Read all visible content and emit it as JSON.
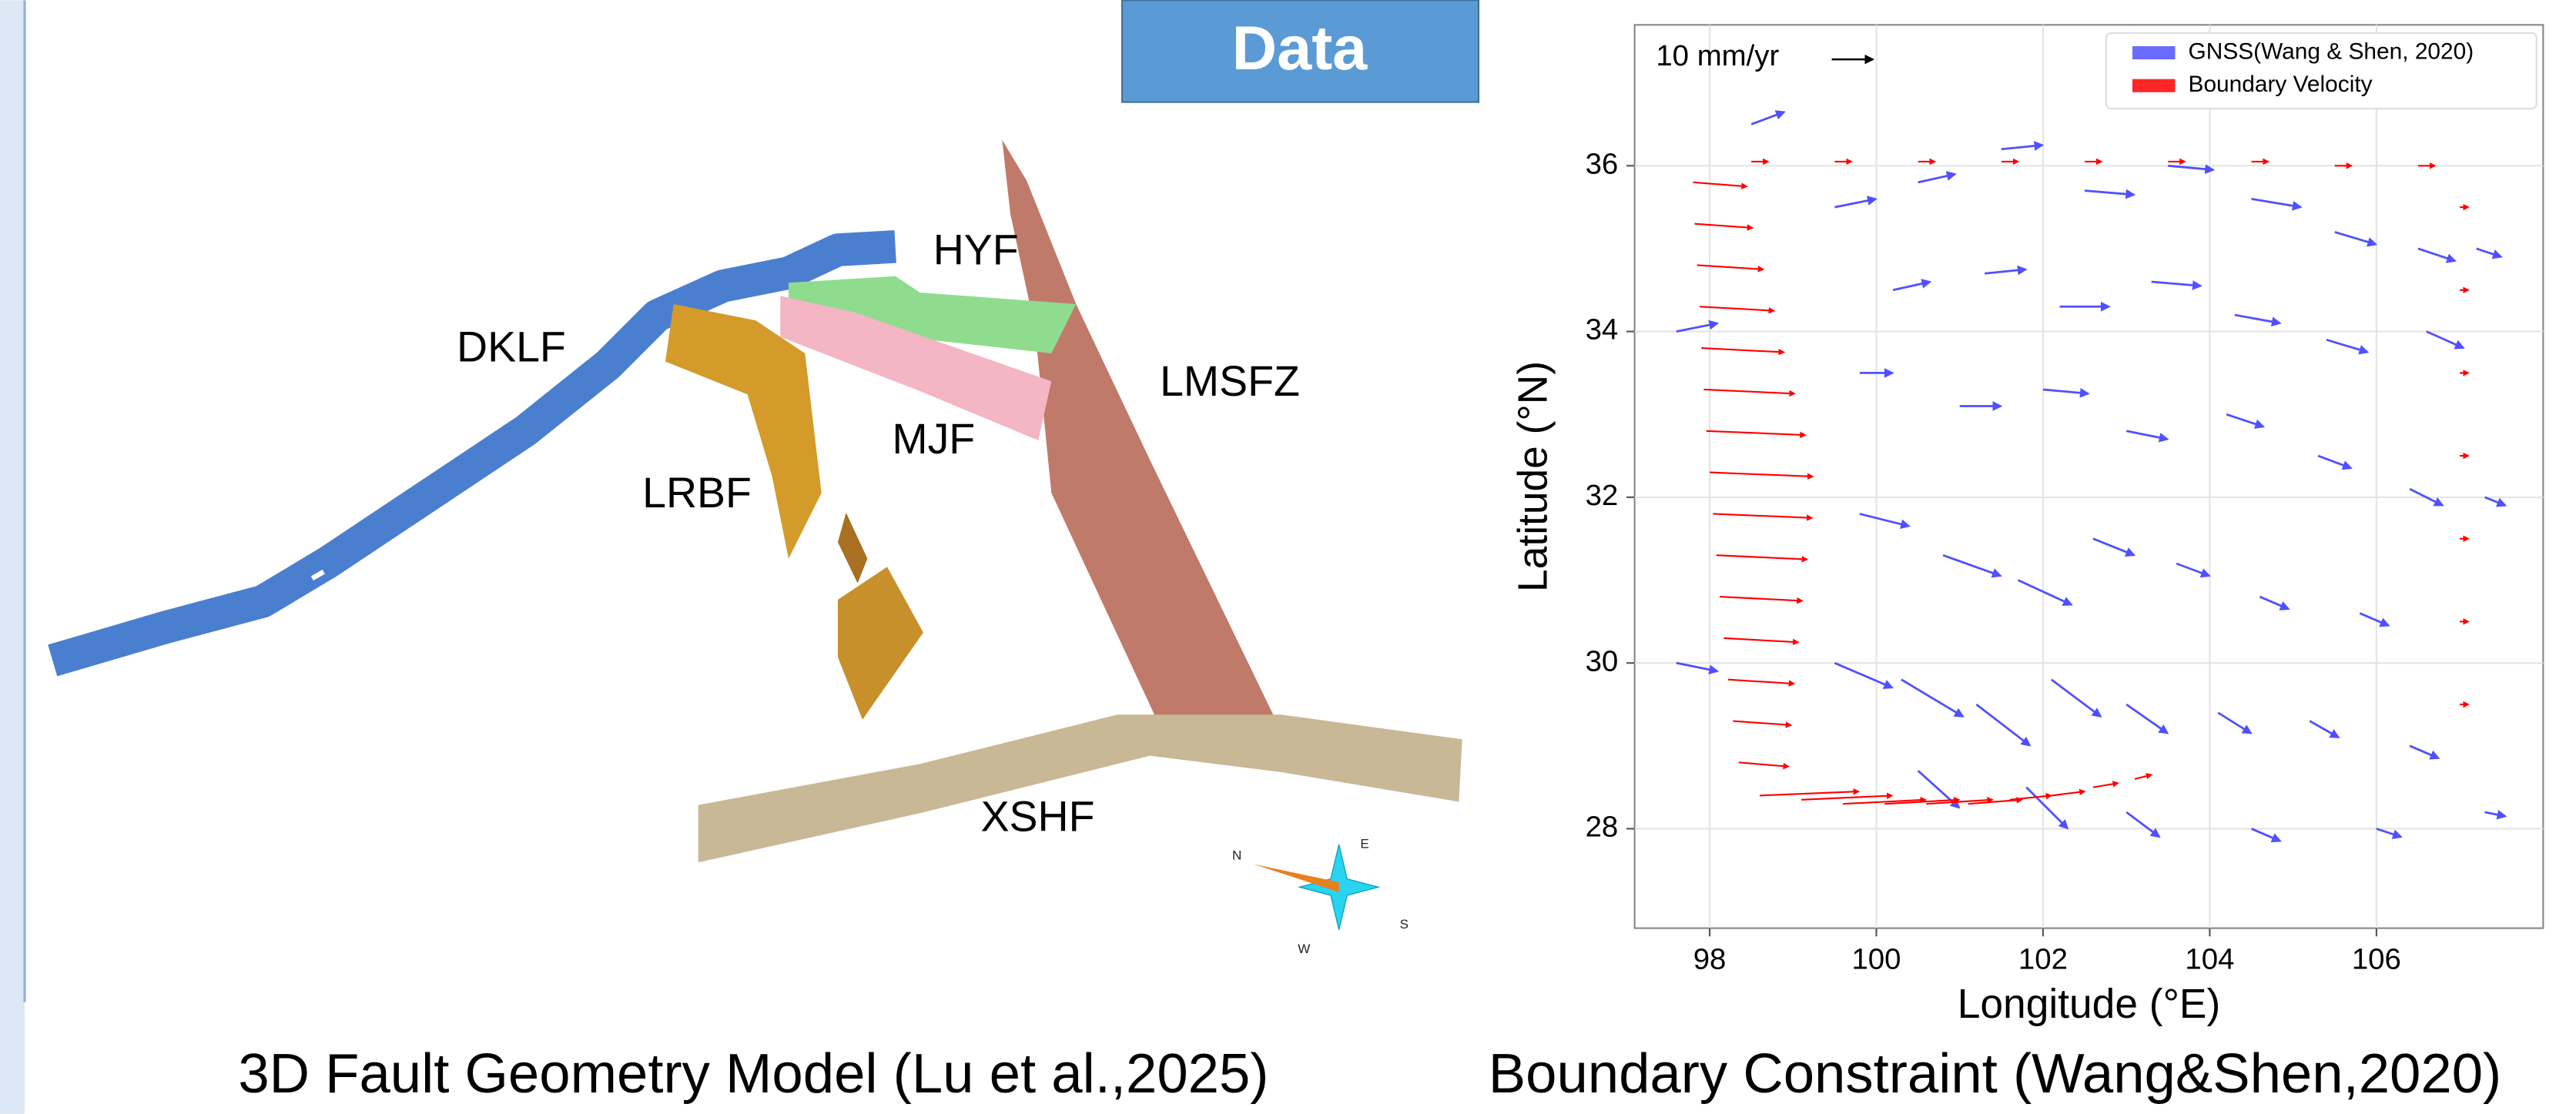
{
  "header": {
    "title": "Data"
  },
  "left_panel": {
    "labels": [
      "DKLF",
      "HYF",
      "LMSFZ",
      "MJF",
      "LRBF",
      "XSHF"
    ],
    "compass": [
      "N",
      "E",
      "S",
      "W"
    ],
    "caption": "3D Fault Geometry Model (Lu et al.,2025)"
  },
  "chart_data": {
    "type": "quiver",
    "caption": "Boundary Constraint (Wang&Shen,2020)",
    "xlabel": "Longitude  (°E)",
    "ylabel": "Latitude  (°N)",
    "xlim": [
      97.1,
      108
    ],
    "ylim": [
      26.8,
      37.7
    ],
    "xticks": [
      98,
      100,
      102,
      104,
      106
    ],
    "yticks": [
      28,
      30,
      32,
      34,
      36
    ],
    "grid": true,
    "legend": "upper right",
    "key": {
      "label": "10 mm/yr",
      "value": 10
    },
    "series": [
      {
        "name": "GNSS(Wang & Shen, 2020)",
        "color": "#5050ff",
        "x": [
          98.5,
          99.5,
          100.5,
          101.5,
          102.5,
          103.5,
          104.5,
          105.5,
          106.5,
          100.2,
          101.3,
          102.2,
          103.3,
          104.3,
          105.4,
          106.6,
          99.8,
          101.0,
          102.0,
          103.0,
          104.2,
          105.3,
          106.4,
          99.8,
          100.8,
          101.7,
          102.6,
          103.6,
          104.6,
          105.8,
          99.5,
          100.3,
          101.2,
          102.1,
          103.0,
          104.1,
          105.2,
          106.4,
          100.5,
          101.8,
          103.0,
          104.5,
          106.0,
          97.6,
          97.6,
          107.2,
          107.3,
          107.3
        ],
        "y": [
          36.5,
          35.5,
          35.8,
          36.2,
          35.7,
          36.0,
          35.6,
          35.2,
          35.0,
          34.5,
          34.7,
          34.3,
          34.6,
          34.2,
          33.9,
          34.0,
          33.5,
          33.1,
          33.3,
          32.8,
          33.0,
          32.5,
          32.1,
          31.8,
          31.3,
          31.0,
          31.5,
          31.2,
          30.8,
          30.6,
          30.0,
          29.8,
          29.5,
          29.8,
          29.5,
          29.4,
          29.3,
          29.0,
          28.7,
          28.5,
          28.2,
          28.0,
          28.0,
          34.0,
          30.0,
          35.0,
          32.0,
          28.2
        ],
        "u": [
          8,
          10,
          9,
          10,
          12,
          11,
          12,
          10,
          9,
          9,
          10,
          12,
          12,
          11,
          10,
          9,
          8,
          10,
          11,
          10,
          9,
          8,
          8,
          12,
          14,
          13,
          10,
          8,
          7,
          7,
          14,
          15,
          13,
          12,
          10,
          8,
          7,
          7,
          10,
          10,
          8,
          7,
          6,
          10,
          10,
          6,
          5,
          5
        ],
        "v": [
          3,
          2,
          2,
          1,
          -1,
          -1,
          -2,
          -3,
          -3,
          2,
          1,
          0,
          -1,
          -2,
          -3,
          -4,
          0,
          0,
          -1,
          -2,
          -3,
          -3,
          -4,
          -3,
          -5,
          -6,
          -4,
          -3,
          -3,
          -3,
          -6,
          -9,
          -10,
          -9,
          -7,
          -5,
          -4,
          -3,
          -9,
          -10,
          -6,
          -3,
          -2,
          2,
          -2,
          -2,
          -2,
          -1
        ]
      },
      {
        "name": "Boundary Velocity",
        "color": "#ff0000",
        "x": [
          97.8,
          97.82,
          97.85,
          97.88,
          97.9,
          97.93,
          97.96,
          98.0,
          98.04,
          98.08,
          98.12,
          98.17,
          98.22,
          98.28,
          98.35,
          98.6,
          99.1,
          99.6,
          100.1,
          100.6,
          101.1,
          101.6,
          102.1,
          102.6,
          103.1,
          98.5,
          99.5,
          100.5,
          101.5,
          102.5,
          103.5,
          104.5,
          105.5,
          106.5,
          107.0,
          107.0,
          107.0,
          107.0,
          107.0,
          107.0,
          107.0
        ],
        "y": [
          35.8,
          35.3,
          34.8,
          34.3,
          33.8,
          33.3,
          32.8,
          32.3,
          31.8,
          31.3,
          30.8,
          30.3,
          29.8,
          29.3,
          28.8,
          28.4,
          28.35,
          28.3,
          28.3,
          28.3,
          28.3,
          28.35,
          28.4,
          28.5,
          28.6,
          36.05,
          36.05,
          36.05,
          36.05,
          36.05,
          36.05,
          36.05,
          36.0,
          36.0,
          35.5,
          34.5,
          33.5,
          32.5,
          31.5,
          30.5,
          29.5
        ],
        "u": [
          13,
          14,
          16,
          18,
          20,
          22,
          24,
          25,
          24,
          22,
          20,
          18,
          16,
          14,
          12,
          24,
          22,
          20,
          18,
          16,
          13,
          10,
          8,
          6,
          4,
          4,
          4,
          4,
          4,
          4,
          4,
          4,
          4,
          4,
          2,
          2,
          2,
          2,
          2,
          2,
          2
        ],
        "v": [
          -1,
          -1,
          -1,
          -1,
          -1,
          -1,
          -1,
          -1,
          -1,
          -1,
          -1,
          -1,
          -1,
          -1,
          -1,
          1,
          1,
          1,
          1,
          1,
          1,
          1,
          1,
          1,
          1,
          0,
          0,
          0,
          0,
          0,
          0,
          0,
          0,
          0,
          0,
          0,
          0,
          0,
          0,
          0,
          0
        ]
      }
    ]
  }
}
